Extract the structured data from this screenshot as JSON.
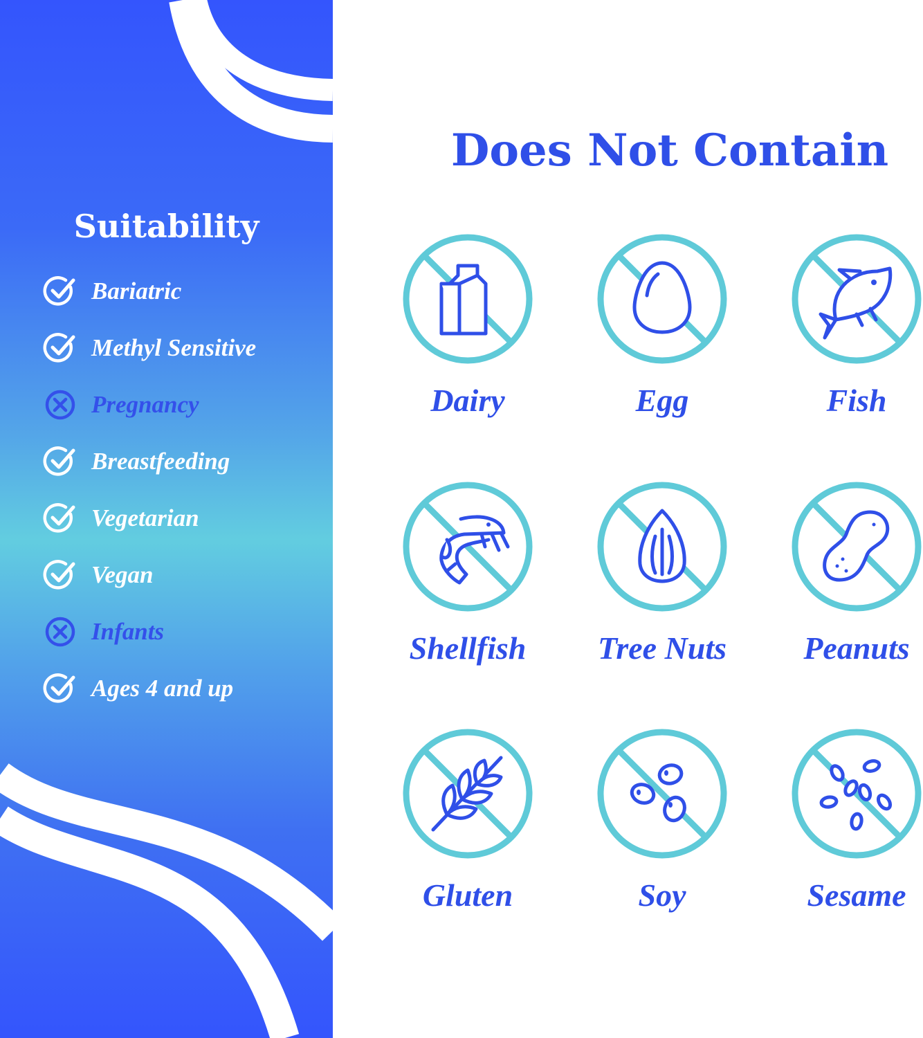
{
  "colors": {
    "accent_blue": "#2f4fe8",
    "teal": "#5fcad8",
    "panel_blue": "#3455fd",
    "panel_teal": "#62cde0"
  },
  "suitability": {
    "title": "Suitability",
    "items": [
      {
        "label": "Bariatric",
        "status": "suitable",
        "icon": "check-circle-icon"
      },
      {
        "label": "Methyl Sensitive",
        "status": "suitable",
        "icon": "check-circle-icon"
      },
      {
        "label": "Pregnancy",
        "status": "not-suitable",
        "icon": "x-circle-icon"
      },
      {
        "label": "Breastfeeding",
        "status": "suitable",
        "icon": "check-circle-icon"
      },
      {
        "label": "Vegetarian",
        "status": "suitable",
        "icon": "check-circle-icon"
      },
      {
        "label": "Vegan",
        "status": "suitable",
        "icon": "check-circle-icon"
      },
      {
        "label": "Infants",
        "status": "not-suitable",
        "icon": "x-circle-icon"
      },
      {
        "label": "Ages 4 and up",
        "status": "suitable",
        "icon": "check-circle-icon"
      }
    ]
  },
  "does_not_contain": {
    "title": "Does Not Contain",
    "items": [
      {
        "label": "Dairy",
        "icon": "milk-carton-icon"
      },
      {
        "label": "Egg",
        "icon": "egg-icon"
      },
      {
        "label": "Fish",
        "icon": "fish-icon"
      },
      {
        "label": "Shellfish",
        "icon": "shrimp-icon"
      },
      {
        "label": "Tree Nuts",
        "icon": "almond-icon"
      },
      {
        "label": "Peanuts",
        "icon": "peanut-icon"
      },
      {
        "label": "Gluten",
        "icon": "wheat-icon"
      },
      {
        "label": "Soy",
        "icon": "soybean-icon"
      },
      {
        "label": "Sesame",
        "icon": "sesame-seeds-icon"
      }
    ]
  }
}
